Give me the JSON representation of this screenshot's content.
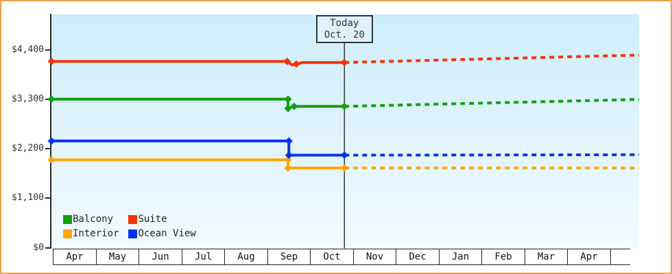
{
  "page": {
    "border_color": "#eda24c"
  },
  "today_box": {
    "line1": "Today",
    "line2": "Oct. 20"
  },
  "legend": {
    "items": [
      {
        "label": "Balcony",
        "color": "#10a010"
      },
      {
        "label": "Suite",
        "color": "#f23305"
      },
      {
        "label": "Interior",
        "color": "#ffa502"
      },
      {
        "label": "Ocean View",
        "color": "#0535eb"
      }
    ]
  },
  "chart_data": {
    "type": "line",
    "title": "",
    "xlabel": "",
    "ylabel": "",
    "x_axis": {
      "months": [
        "Apr",
        "May",
        "Jun",
        "Jul",
        "Aug",
        "Sep",
        "Oct",
        "Nov",
        "Dec",
        "Jan",
        "Feb",
        "Mar",
        "Apr"
      ]
    },
    "y_axis": {
      "ticks": [
        {
          "label": "$0",
          "value": 0
        },
        {
          "label": "$1,100",
          "value": 1100
        },
        {
          "label": "$2,200",
          "value": 2200
        },
        {
          "label": "$3,300",
          "value": 3300
        },
        {
          "label": "$4,400",
          "value": 4400
        }
      ],
      "ylim": [
        0,
        5150
      ]
    },
    "today": {
      "label_line1": "Today",
      "label_line2": "Oct. 20",
      "month_position": 6.645
    },
    "grid": false,
    "legend_position": "bottom-left-inside",
    "series": [
      {
        "name": "Interior",
        "color": "#ffa502",
        "solid_points": [
          [
            -0.03,
            1950
          ],
          [
            5.36,
            1950
          ],
          [
            5.36,
            1770
          ],
          [
            6.645,
            1770
          ]
        ],
        "markers": [
          [
            -0.03,
            1950
          ],
          [
            5.36,
            1950
          ],
          [
            5.36,
            1770
          ],
          [
            6.645,
            1770
          ]
        ],
        "projection_points": [
          [
            6.645,
            1770
          ],
          [
            13.36,
            1770
          ]
        ]
      },
      {
        "name": "Ocean View",
        "color": "#0535eb",
        "solid_points": [
          [
            -0.03,
            2370
          ],
          [
            5.38,
            2370
          ],
          [
            5.38,
            2055
          ],
          [
            6.645,
            2055
          ]
        ],
        "markers": [
          [
            -0.03,
            2370
          ],
          [
            5.38,
            2370
          ],
          [
            5.38,
            2055
          ],
          [
            6.645,
            2055
          ]
        ],
        "projection_points": [
          [
            6.645,
            2055
          ],
          [
            13.36,
            2065
          ]
        ]
      },
      {
        "name": "Balcony",
        "color": "#10a010",
        "solid_points": [
          [
            -0.03,
            3300
          ],
          [
            5.36,
            3300
          ],
          [
            5.36,
            3095
          ],
          [
            5.5,
            3140
          ],
          [
            6.645,
            3140
          ]
        ],
        "markers": [
          [
            -0.03,
            3300
          ],
          [
            5.36,
            3300
          ],
          [
            5.36,
            3095
          ],
          [
            5.5,
            3140
          ],
          [
            6.645,
            3140
          ]
        ],
        "projection_points": [
          [
            6.645,
            3140
          ],
          [
            13.36,
            3295
          ]
        ]
      },
      {
        "name": "Suite",
        "color": "#f23305",
        "solid_points": [
          [
            -0.03,
            4140
          ],
          [
            5.34,
            4140
          ],
          [
            5.45,
            4060
          ],
          [
            5.55,
            4080
          ],
          [
            5.7,
            4115
          ],
          [
            6.645,
            4115
          ]
        ],
        "markers": [
          [
            -0.03,
            4140
          ],
          [
            5.34,
            4140
          ],
          [
            5.55,
            4080
          ],
          [
            6.645,
            4115
          ]
        ],
        "projection_points": [
          [
            6.645,
            4115
          ],
          [
            13.36,
            4280
          ]
        ]
      }
    ]
  }
}
